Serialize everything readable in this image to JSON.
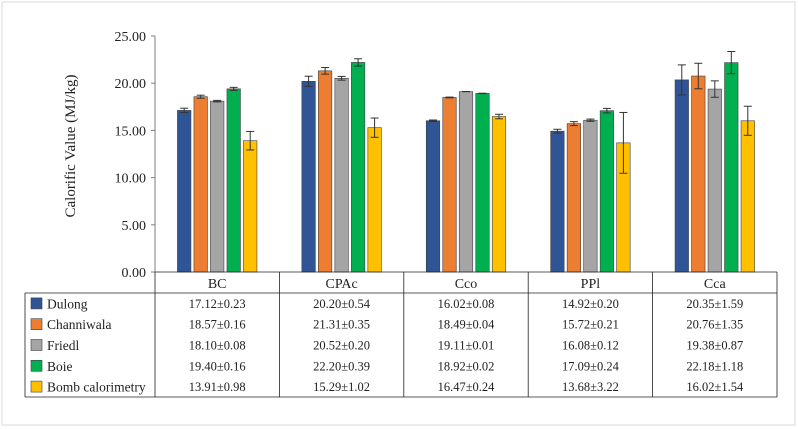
{
  "chart_data": {
    "type": "bar",
    "ylabel": "Calorific Value (MJ/kg)",
    "ylim": [
      0,
      25
    ],
    "yticks": [
      "0.00",
      "5.00",
      "10.00",
      "15.00",
      "20.00",
      "25.00"
    ],
    "grid": false,
    "legend": "data-table-below",
    "error_bars": true,
    "categories": [
      "BC",
      "CPAc",
      "Cco",
      "PPl",
      "Cca"
    ],
    "series": [
      {
        "name": "Dulong",
        "color": "#2f5597",
        "values": [
          17.12,
          20.2,
          16.02,
          14.92,
          20.35
        ],
        "errors": [
          0.23,
          0.54,
          0.08,
          0.2,
          1.59
        ],
        "labels": [
          "17.12±0.23",
          "20.20±0.54",
          "16.02±0.08",
          "14.92±0.20",
          "20.35±1.59"
        ]
      },
      {
        "name": "Channiwala",
        "color": "#ed7d31",
        "values": [
          18.57,
          21.31,
          18.49,
          15.72,
          20.76
        ],
        "errors": [
          0.16,
          0.35,
          0.04,
          0.21,
          1.35
        ],
        "labels": [
          "18.57±0.16",
          "21.31±0.35",
          "18.49±0.04",
          "15.72±0.21",
          "20.76±1.35"
        ]
      },
      {
        "name": "Friedl",
        "color": "#a5a5a5",
        "values": [
          18.1,
          20.52,
          19.11,
          16.08,
          19.38
        ],
        "errors": [
          0.08,
          0.2,
          0.01,
          0.12,
          0.87
        ],
        "labels": [
          "18.10±0.08",
          "20.52±0.20",
          "19.11±0.01",
          "16.08±0.12",
          "19.38±0.87"
        ]
      },
      {
        "name": "Boie",
        "color": "#00b050",
        "values": [
          19.4,
          22.2,
          18.92,
          17.09,
          22.18
        ],
        "errors": [
          0.16,
          0.39,
          0.02,
          0.24,
          1.18
        ],
        "labels": [
          "19.40±0.16",
          "22.20±0.39",
          "18.92±0.02",
          "17.09±0.24",
          "22.18±1.18"
        ]
      },
      {
        "name": "Bomb calorimetry",
        "color": "#ffc000",
        "values": [
          13.91,
          15.29,
          16.47,
          13.68,
          16.02
        ],
        "errors": [
          0.98,
          1.02,
          0.24,
          3.22,
          1.54
        ],
        "labels": [
          "13.91±0.98",
          "15.29±1.02",
          "16.47±0.24",
          "13.68±3.22",
          "16.02±1.54"
        ]
      }
    ]
  }
}
